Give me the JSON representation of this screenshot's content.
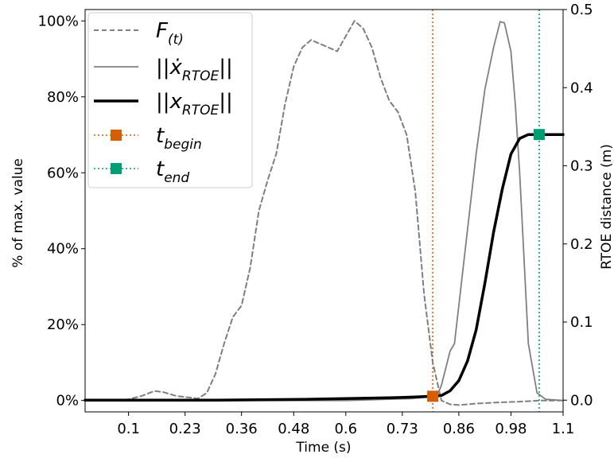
{
  "chart_data": {
    "type": "line",
    "xlabel": "Time (s)",
    "ylabel": "% of max. value",
    "y2label": "RTOE distance (m)",
    "xlim": [
      0.0,
      1.1
    ],
    "ylim": [
      -0.03,
      1.03
    ],
    "y2lim": [
      -0.015,
      0.5
    ],
    "x_ticks": [
      {
        "value": 0.1,
        "label": "0.1"
      },
      {
        "value": 0.23,
        "label": "0.23"
      },
      {
        "value": 0.36,
        "label": "0.36"
      },
      {
        "value": 0.48,
        "label": "0.48"
      },
      {
        "value": 0.6,
        "label": "0.6"
      },
      {
        "value": 0.73,
        "label": "0.73"
      },
      {
        "value": 0.86,
        "label": "0.86"
      },
      {
        "value": 0.98,
        "label": "0.98"
      },
      {
        "value": 1.1,
        "label": "1.1"
      }
    ],
    "y_ticks": [
      {
        "value": 0.0,
        "label": "0%"
      },
      {
        "value": 0.2,
        "label": "20%"
      },
      {
        "value": 0.4,
        "label": "40%"
      },
      {
        "value": 0.6,
        "label": "60%"
      },
      {
        "value": 0.8,
        "label": "80%"
      },
      {
        "value": 1.0,
        "label": "100%"
      }
    ],
    "y2_ticks": [
      {
        "value": 0.0,
        "label": "0.0"
      },
      {
        "value": 0.1,
        "label": "0.1"
      },
      {
        "value": 0.2,
        "label": "0.2"
      },
      {
        "value": 0.3,
        "label": "0.3"
      },
      {
        "value": 0.4,
        "label": "0.4"
      },
      {
        "value": 0.5,
        "label": "0.5"
      }
    ],
    "legend": {
      "placement": "upper-left",
      "entries": [
        {
          "main": "F",
          "sub": "(t)",
          "style": "dashed-gray"
        },
        {
          "main": "||ẋ",
          "sub": "RTOE",
          "after": "||",
          "style": "thin-gray"
        },
        {
          "main": "||x",
          "sub": "RTOE",
          "after": "||",
          "style": "thick-black"
        },
        {
          "main": "t",
          "sub": "begin",
          "style": "orange-dotted-square"
        },
        {
          "main": "t",
          "sub": "end",
          "style": "green-dotted-square"
        }
      ]
    },
    "colors": {
      "force": "#7f7f7f",
      "velocity": "#808080",
      "distance": "#000000",
      "begin": "#d55e00",
      "end": "#009e73"
    },
    "series": [
      {
        "name": "F(t)",
        "axis": "left",
        "x": [
          0.0,
          0.1,
          0.13,
          0.16,
          0.18,
          0.21,
          0.24,
          0.26,
          0.28,
          0.3,
          0.32,
          0.34,
          0.36,
          0.38,
          0.4,
          0.42,
          0.44,
          0.46,
          0.48,
          0.5,
          0.52,
          0.54,
          0.56,
          0.58,
          0.6,
          0.62,
          0.64,
          0.66,
          0.68,
          0.7,
          0.72,
          0.74,
          0.76,
          0.78,
          0.8,
          0.82,
          0.84,
          0.86,
          0.88,
          0.9,
          0.95,
          1.0,
          1.05,
          1.1
        ],
        "values": [
          0.0,
          0.003,
          0.012,
          0.025,
          0.022,
          0.012,
          0.008,
          0.005,
          0.02,
          0.07,
          0.15,
          0.22,
          0.25,
          0.35,
          0.5,
          0.58,
          0.65,
          0.78,
          0.88,
          0.93,
          0.95,
          0.94,
          0.93,
          0.92,
          0.96,
          1.0,
          0.98,
          0.93,
          0.85,
          0.79,
          0.76,
          0.7,
          0.55,
          0.28,
          0.1,
          0.0,
          -0.01,
          -0.012,
          -0.01,
          -0.008,
          -0.005,
          -0.003,
          0.0,
          0.0
        ]
      },
      {
        "name": "||ẋRTOE||",
        "axis": "left",
        "x": [
          0.0,
          0.6,
          0.75,
          0.8,
          0.81,
          0.82,
          0.84,
          0.85,
          0.86,
          0.88,
          0.9,
          0.92,
          0.94,
          0.955,
          0.965,
          0.98,
          0.99,
          1.0,
          1.02,
          1.04,
          1.06,
          1.1
        ],
        "values": [
          0.0,
          0.0,
          0.005,
          0.01,
          0.013,
          0.04,
          0.13,
          0.15,
          0.25,
          0.45,
          0.65,
          0.82,
          0.93,
          0.998,
          0.995,
          0.92,
          0.78,
          0.6,
          0.15,
          0.02,
          0.003,
          0.0
        ]
      },
      {
        "name": "||xRTOE||",
        "axis": "right",
        "x": [
          0.0,
          0.3,
          0.5,
          0.6,
          0.7,
          0.76,
          0.8,
          0.82,
          0.84,
          0.86,
          0.88,
          0.9,
          0.92,
          0.94,
          0.96,
          0.98,
          1.0,
          1.02,
          1.04,
          1.06,
          1.1
        ],
        "values": [
          0.0,
          0.0,
          0.001,
          0.002,
          0.003,
          0.004,
          0.005,
          0.006,
          0.012,
          0.025,
          0.05,
          0.09,
          0.15,
          0.215,
          0.27,
          0.315,
          0.335,
          0.34,
          0.34,
          0.34,
          0.34
        ]
      }
    ],
    "markers": {
      "begin": {
        "x": 0.8,
        "y": 0.005
      },
      "end": {
        "x": 1.045,
        "y": 0.34
      }
    }
  }
}
